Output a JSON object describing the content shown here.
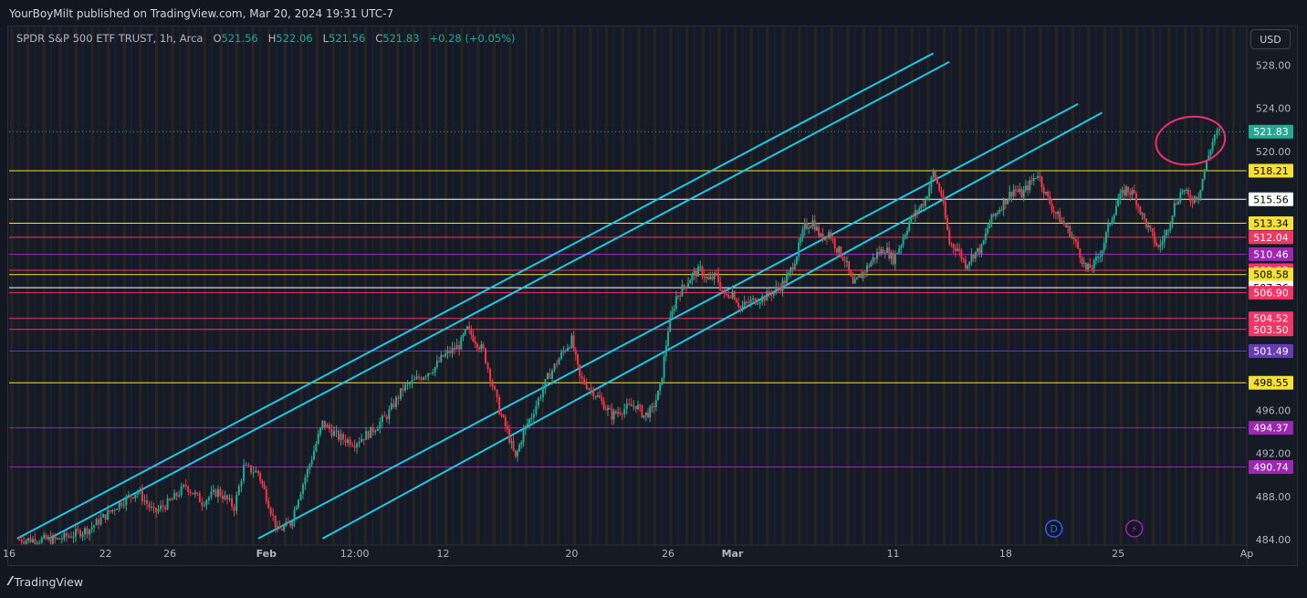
{
  "header": {
    "published": "YourBoyMilt published on TradingView.com, Mar 20, 2024 19:31 UTC-7"
  },
  "legend": {
    "symbol": "SPDR S&P 500 ETF TRUST, 1h, Arca",
    "o_label": "O",
    "o": "521.56",
    "h_label": "H",
    "h": "522.06",
    "l_label": "L",
    "l": "521.56",
    "c_label": "C",
    "c": "521.83",
    "change": "+0.28 (+0.05%)"
  },
  "currency_button": "USD",
  "footer": {
    "brand": "TradingView"
  },
  "colors": {
    "up": "#22ab94",
    "down": "#f23645",
    "channel": "#1ec8e6",
    "background": "#161a25",
    "circle": "#f0306a"
  },
  "chart_data": {
    "type": "candlestick",
    "title": "SPDR S&P 500 ETF TRUST, 1h, Arca",
    "ylim": [
      483.5,
      531.5
    ],
    "x_range_days": [
      0,
      77
    ],
    "y_ticks": [
      "528.00",
      "524.00",
      "520.00",
      "496.00",
      "492.00",
      "488.00",
      "484.00"
    ],
    "x_ticks": [
      {
        "label": "16",
        "day": 0
      },
      {
        "label": "22",
        "day": 6
      },
      {
        "label": "26",
        "day": 10
      },
      {
        "label": "Feb",
        "day": 16
      },
      {
        "label": "12:00",
        "day": 21.5
      },
      {
        "label": "12",
        "day": 27
      },
      {
        "label": "20",
        "day": 35
      },
      {
        "label": "26",
        "day": 41
      },
      {
        "label": "Mar",
        "day": 45
      },
      {
        "label": "11",
        "day": 55
      },
      {
        "label": "18",
        "day": 62
      },
      {
        "label": "25",
        "day": 69
      },
      {
        "label": "Ap",
        "day": 77
      }
    ],
    "last_price": {
      "value": 521.83,
      "label": "521.83"
    },
    "horizontal_levels": [
      {
        "value": 518.21,
        "label": "518.21",
        "color": "#f5e033"
      },
      {
        "value": 515.56,
        "label": "515.56",
        "color": "#ffffff"
      },
      {
        "value": 513.34,
        "label": "513.34",
        "color": "#f5e033"
      },
      {
        "value": 512.04,
        "label": "512.04",
        "color": "#f23665"
      },
      {
        "value": 510.46,
        "label": "510.46",
        "color": "#9c27b0"
      },
      {
        "value": 508.98,
        "label": "508.98",
        "color": "#f23665"
      },
      {
        "value": 508.58,
        "label": "508.58",
        "color": "#f5e033"
      },
      {
        "value": 507.36,
        "label": "507.36",
        "color": "#ffffff"
      },
      {
        "value": 506.9,
        "label": "506.90",
        "color": "#f23665"
      },
      {
        "value": 504.52,
        "label": "504.52",
        "color": "#f23665"
      },
      {
        "value": 503.5,
        "label": "503.50",
        "color": "#f23665"
      },
      {
        "value": 501.49,
        "label": "501.49",
        "color": "#673ab7"
      },
      {
        "value": 498.55,
        "label": "498.55",
        "color": "#f5e033"
      },
      {
        "value": 494.37,
        "label": "494.37",
        "color": "#9c27b0"
      },
      {
        "value": 490.74,
        "label": "490.74",
        "color": "#9c27b0"
      }
    ],
    "channel_lines": [
      {
        "from": {
          "day": 0.5,
          "price": 484.1
        },
        "to": {
          "day": 57.5,
          "price": 529.1
        }
      },
      {
        "from": {
          "day": 2.5,
          "price": 484.1
        },
        "to": {
          "day": 58.5,
          "price": 528.3
        }
      },
      {
        "from": {
          "day": 15.5,
          "price": 484.1
        },
        "to": {
          "day": 66.5,
          "price": 524.4
        }
      },
      {
        "from": {
          "day": 19.5,
          "price": 484.1
        },
        "to": {
          "day": 68,
          "price": 523.6
        }
      }
    ],
    "path_points": [
      [
        0.5,
        484.0
      ],
      [
        3,
        484.0
      ],
      [
        5,
        485.0
      ],
      [
        7,
        487.5
      ],
      [
        8,
        488.5
      ],
      [
        9,
        486.5
      ],
      [
        10,
        487.5
      ],
      [
        11,
        489.0
      ],
      [
        12,
        487.5
      ],
      [
        13,
        488.5
      ],
      [
        14,
        487.0
      ],
      [
        14.6,
        490.7
      ],
      [
        15.5,
        490.2
      ],
      [
        16,
        488.0
      ],
      [
        16.7,
        484.8
      ],
      [
        17.5,
        485.5
      ],
      [
        18,
        488.0
      ],
      [
        18.7,
        491.0
      ],
      [
        19.5,
        494.8
      ],
      [
        20.5,
        493.5
      ],
      [
        21.5,
        493.0
      ],
      [
        22.5,
        494.0
      ],
      [
        23.5,
        495.5
      ],
      [
        24.5,
        498.0
      ],
      [
        25.5,
        499.0
      ],
      [
        26.5,
        500.0
      ],
      [
        27,
        501.0
      ],
      [
        28,
        502.0
      ],
      [
        28.5,
        503.5
      ],
      [
        29,
        502.5
      ],
      [
        29.5,
        501.5
      ],
      [
        30.5,
        496.0
      ],
      [
        31,
        494.0
      ],
      [
        31.5,
        491.5
      ],
      [
        32,
        494.0
      ],
      [
        32.5,
        495.5
      ],
      [
        33.5,
        499.0
      ],
      [
        34.5,
        501.5
      ],
      [
        35,
        502.5
      ],
      [
        35.5,
        499.0
      ],
      [
        36.5,
        497.5
      ],
      [
        37,
        496.5
      ],
      [
        37.5,
        495.5
      ],
      [
        38,
        496.0
      ],
      [
        39,
        496.5
      ],
      [
        39.5,
        495.5
      ],
      [
        40,
        496.0
      ],
      [
        40.5,
        498.0
      ],
      [
        41,
        503.5
      ],
      [
        41.5,
        506.5
      ],
      [
        42,
        507.5
      ],
      [
        42.5,
        508.5
      ],
      [
        43,
        509.0
      ],
      [
        43.5,
        508.0
      ],
      [
        44,
        508.5
      ],
      [
        44.5,
        506.5
      ],
      [
        45,
        507.0
      ],
      [
        45.5,
        505.5
      ],
      [
        46,
        506.0
      ],
      [
        47,
        506.5
      ],
      [
        48,
        507.5
      ],
      [
        48.5,
        508.5
      ],
      [
        49,
        510.5
      ],
      [
        49.5,
        513.0
      ],
      [
        50,
        513.5
      ],
      [
        50.5,
        512.0
      ],
      [
        51,
        512.5
      ],
      [
        51.5,
        511.0
      ],
      [
        52,
        510.0
      ],
      [
        52.5,
        507.5
      ],
      [
        53,
        508.5
      ],
      [
        53.5,
        509.5
      ],
      [
        54,
        510.5
      ],
      [
        54.5,
        511.0
      ],
      [
        55,
        510.0
      ],
      [
        55.5,
        511.5
      ],
      [
        56,
        513.5
      ],
      [
        56.5,
        514.5
      ],
      [
        57,
        515.5
      ],
      [
        57.5,
        518.0
      ],
      [
        58,
        516.0
      ],
      [
        58.5,
        511.5
      ],
      [
        59,
        511.0
      ],
      [
        59.5,
        509.5
      ],
      [
        60,
        510.5
      ],
      [
        60.5,
        511.0
      ],
      [
        61,
        513.5
      ],
      [
        61.5,
        514.5
      ],
      [
        62,
        515.5
      ],
      [
        62.5,
        516.5
      ],
      [
        63,
        516.0
      ],
      [
        63.5,
        517.0
      ],
      [
        64,
        518.0
      ],
      [
        64.5,
        516.0
      ],
      [
        65,
        514.5
      ],
      [
        65.5,
        513.5
      ],
      [
        66,
        512.5
      ],
      [
        66.5,
        511.0
      ],
      [
        67,
        509.0
      ],
      [
        67.5,
        509.5
      ],
      [
        68,
        511.0
      ],
      [
        68.5,
        513.5
      ],
      [
        69,
        515.5
      ],
      [
        69.5,
        516.5
      ],
      [
        70,
        516.0
      ],
      [
        70.5,
        514.0
      ],
      [
        71,
        512.5
      ],
      [
        71.5,
        511.0
      ],
      [
        72,
        512.5
      ],
      [
        72.5,
        515.0
      ],
      [
        73,
        516.5
      ],
      [
        73.5,
        515.5
      ],
      [
        74,
        516.0
      ],
      [
        74.5,
        519.0
      ],
      [
        75,
        521.5
      ],
      [
        75.3,
        521.83
      ]
    ],
    "annotations": [
      {
        "type": "ellipse",
        "center": {
          "day": 73.5,
          "price": 521.0
        },
        "color": "#f0306a"
      },
      {
        "type": "event",
        "label": "D",
        "day": 65,
        "color": "#2962ff"
      },
      {
        "type": "event",
        "label": "⚡",
        "day": 70,
        "color": "#9c27b0"
      }
    ]
  }
}
